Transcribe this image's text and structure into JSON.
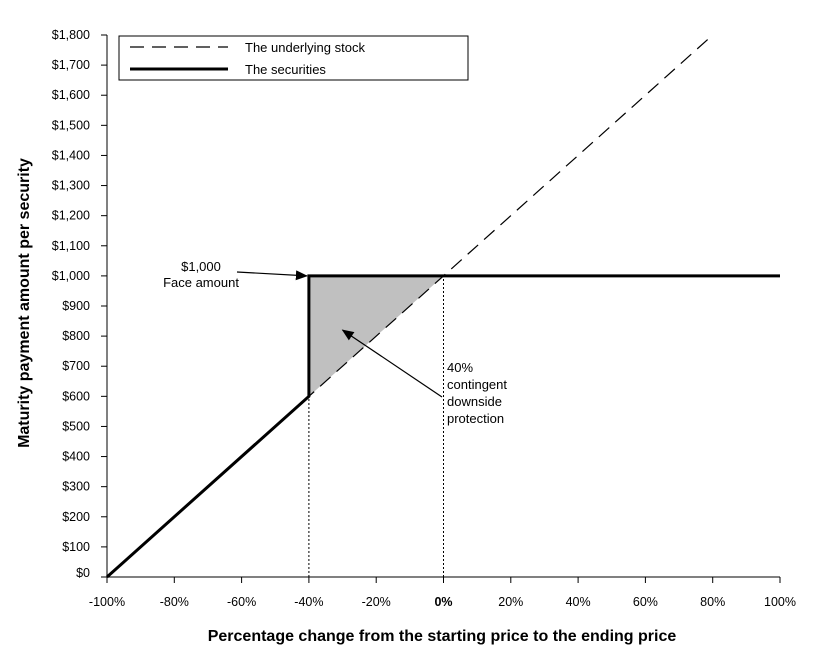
{
  "chart_data": {
    "type": "line",
    "xlabel": "Percentage change from the starting price to the ending price",
    "ylabel": "Maturity payment amount per security",
    "xlim": [
      -100,
      100
    ],
    "ylim": [
      0,
      1800
    ],
    "x_ticks": [
      -100,
      -80,
      -60,
      -40,
      -20,
      0,
      20,
      40,
      60,
      80,
      100
    ],
    "x_tick_labels": [
      "-100%",
      "-80%",
      "-60%",
      "-40%",
      "-20%",
      "0%",
      "20%",
      "40%",
      "60%",
      "80%",
      "100%"
    ],
    "y_ticks": [
      0,
      100,
      200,
      300,
      400,
      500,
      600,
      700,
      800,
      900,
      1000,
      1100,
      1200,
      1300,
      1400,
      1500,
      1600,
      1700,
      1800
    ],
    "y_tick_labels": [
      "$0",
      "$100",
      "$200",
      "$300",
      "$400",
      "$500",
      "$600",
      "$700",
      "$800",
      "$900",
      "$1,000",
      "$1,100",
      "$1,200",
      "$1,300",
      "$1,400",
      "$1,500",
      "$1,600",
      "$1,700",
      "$1,800"
    ],
    "series": [
      {
        "name": "The underlying stock",
        "style": "dashed",
        "color": "#000000",
        "x": [
          -100,
          80
        ],
        "y": [
          0,
          1800
        ]
      },
      {
        "name": "The securities",
        "style": "solid-thick",
        "color": "#000000",
        "x": [
          -100,
          -40,
          -40,
          100
        ],
        "y": [
          0,
          600,
          1000,
          1000
        ]
      }
    ],
    "shaded_region": {
      "color": "#c0c0c0",
      "x": [
        -40,
        0,
        -40
      ],
      "y": [
        1000,
        1000,
        600
      ]
    },
    "reference_lines": [
      {
        "x": -40,
        "y_from": 0,
        "y_to": 600,
        "style": "dotted"
      },
      {
        "x": 0,
        "y_from": 0,
        "y_to": 1000,
        "style": "dotted"
      }
    ],
    "annotations": [
      {
        "lines": [
          "$1,000",
          "Face amount"
        ],
        "arrow_to": [
          -40,
          1000
        ]
      },
      {
        "lines": [
          "40%",
          "contingent",
          "downside",
          "protection"
        ],
        "arrow_to": [
          -30,
          820
        ]
      }
    ],
    "legend": {
      "position": "top-left"
    },
    "grid": false
  }
}
